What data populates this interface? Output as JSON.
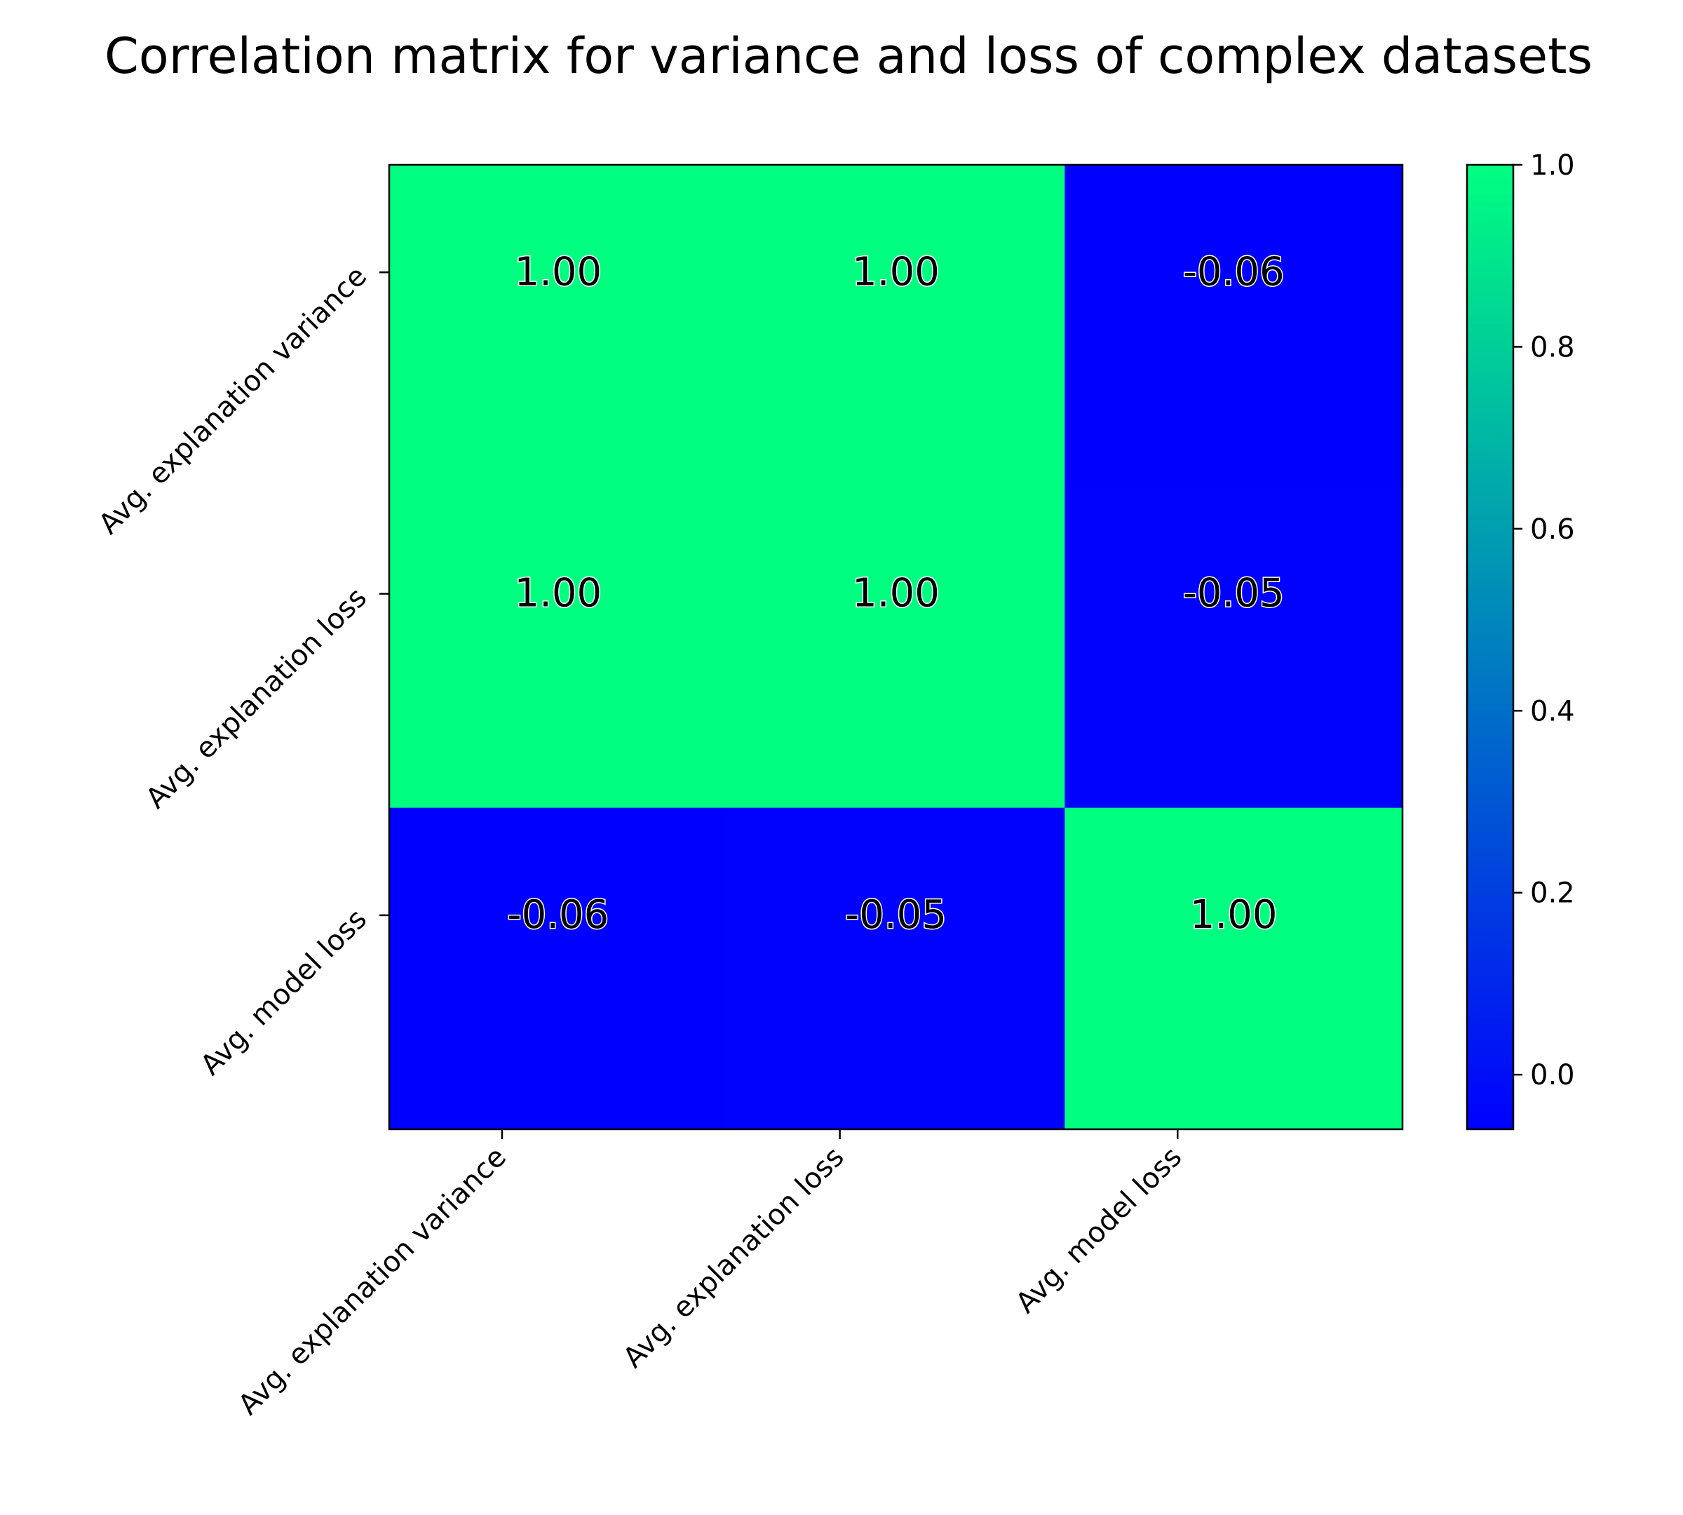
{
  "chart_data": {
    "type": "heatmap",
    "title": "Correlation matrix for variance and loss of complex datasets",
    "rows": [
      "Avg. explanation variance",
      "Avg. explanation loss",
      "Avg. model loss"
    ],
    "columns": [
      "Avg. explanation variance",
      "Avg. explanation loss",
      "Avg. model loss"
    ],
    "values": [
      [
        1.0,
        1.0,
        -0.06
      ],
      [
        1.0,
        1.0,
        -0.05
      ],
      [
        -0.06,
        -0.05,
        1.0
      ]
    ],
    "cell_labels": [
      [
        "1.00",
        "1.00",
        "-0.06"
      ],
      [
        "1.00",
        "1.00",
        "-0.05"
      ],
      [
        "-0.06",
        "-0.05",
        "1.00"
      ]
    ],
    "colorbar": {
      "vmin": -0.06,
      "vmax": 1.0,
      "ticks": [
        0.0,
        0.2,
        0.4,
        0.6,
        0.8,
        1.0
      ],
      "tick_labels": [
        "0.0",
        "0.2",
        "0.4",
        "0.6",
        "0.8",
        "1.0"
      ],
      "low_color": "#0000ff",
      "high_color": "#00ff80"
    },
    "grid": false
  }
}
